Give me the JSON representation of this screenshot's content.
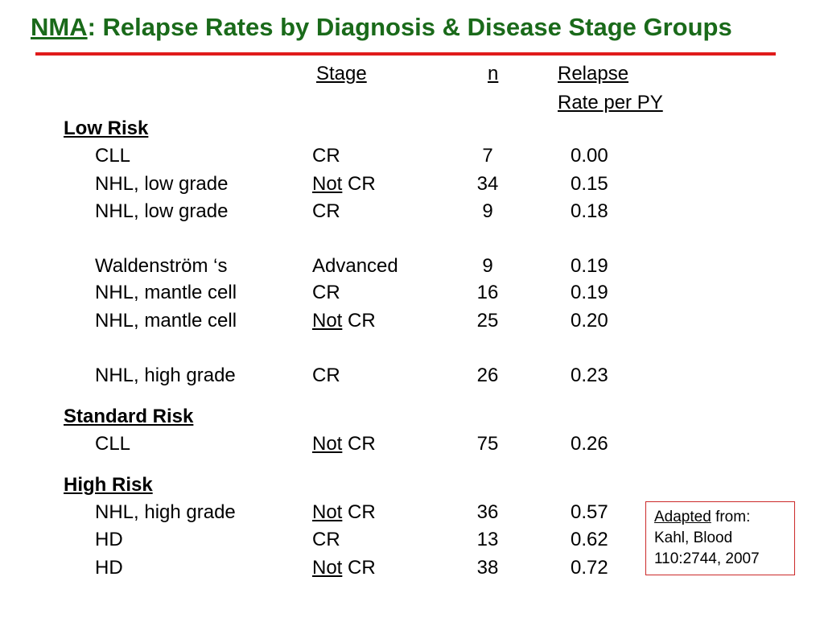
{
  "slide": {
    "title_prefix": "NMA",
    "title_rest": ": Relapse Rates by Diagnosis & Disease Stage Groups",
    "colors": {
      "title": "#1a6a1a",
      "rule": "#e01b1b",
      "note_border": "#cc2a2a"
    }
  },
  "table": {
    "headers": {
      "stage": "Stage",
      "n": "n",
      "rate_line1": "Relapse",
      "rate_line2": "Rate per PY"
    },
    "groups": [
      {
        "name": "Low Risk"
      },
      {
        "name": "Standard Risk"
      },
      {
        "name": "High Risk"
      }
    ],
    "rows": [
      {
        "diagnosis": "CLL",
        "stage_pre": "",
        "stage": "CR",
        "n": "7",
        "rate": "0.00"
      },
      {
        "diagnosis": "NHL, low grade",
        "stage_pre": "Not",
        "stage": " CR",
        "n": "34",
        "rate": "0.15"
      },
      {
        "diagnosis": "NHL, low grade",
        "stage_pre": "",
        "stage": "CR",
        "n": "9",
        "rate": "0.18"
      },
      {
        "diagnosis": "Waldenström ‘s",
        "stage_pre": "",
        "stage": "Advanced",
        "n": "9",
        "rate": "0.19"
      },
      {
        "diagnosis": "NHL, mantle cell",
        "stage_pre": "",
        "stage": "CR",
        "n": "16",
        "rate": "0.19"
      },
      {
        "diagnosis": "NHL, mantle cell",
        "stage_pre": "Not",
        "stage": " CR",
        "n": "25",
        "rate": "0.20"
      },
      {
        "diagnosis": "NHL, high grade",
        "stage_pre": "",
        "stage": "CR",
        "n": "26",
        "rate": "0.23"
      },
      {
        "diagnosis": "CLL",
        "stage_pre": "Not",
        "stage": " CR",
        "n": "75",
        "rate": "0.26"
      },
      {
        "diagnosis": "NHL, high grade",
        "stage_pre": "Not",
        "stage": " CR",
        "n": "36",
        "rate": "0.57"
      },
      {
        "diagnosis": "HD",
        "stage_pre": "",
        "stage": "CR",
        "n": "13",
        "rate": "0.62"
      },
      {
        "diagnosis": "HD",
        "stage_pre": "Not",
        "stage": " CR",
        "n": "38",
        "rate": "0.72"
      }
    ]
  },
  "note": {
    "adapted": "Adapted",
    "from": " from:",
    "line2": "Kahl, Blood",
    "line3": "110:2744, 2007"
  }
}
